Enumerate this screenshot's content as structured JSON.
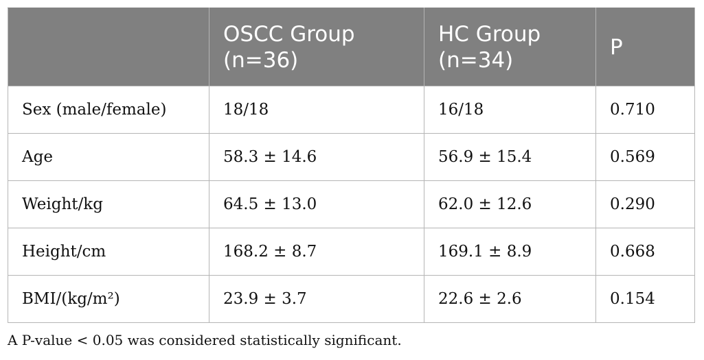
{
  "table": {
    "headers": [
      {
        "line1": "",
        "line2": ""
      },
      {
        "line1": "OSCC Group",
        "line2": "(n=36)"
      },
      {
        "line1": "HC Group",
        "line2": "(n=34)"
      },
      {
        "line1": "P",
        "line2": ""
      }
    ],
    "rows": [
      {
        "label": "Sex (male/female)",
        "oscc": "18/18",
        "hc": "16/18",
        "p": "0.710"
      },
      {
        "label": "Age",
        "oscc": "58.3 ± 14.6",
        "hc": "56.9 ± 15.4",
        "p": "0.569"
      },
      {
        "label": "Weight/kg",
        "oscc": "64.5 ± 13.0",
        "hc": "62.0 ± 12.6",
        "p": "0.290"
      },
      {
        "label": "Height/cm",
        "oscc": "168.2 ± 8.7",
        "hc": "169.1 ± 8.9",
        "p": "0.668"
      },
      {
        "label": "BMI/(kg/m²)",
        "oscc": "23.9 ± 3.7",
        "hc": "22.6 ± 2.6",
        "p": "0.154"
      }
    ]
  },
  "footnote": "A P-value < 0.05 was considered statistically significant."
}
